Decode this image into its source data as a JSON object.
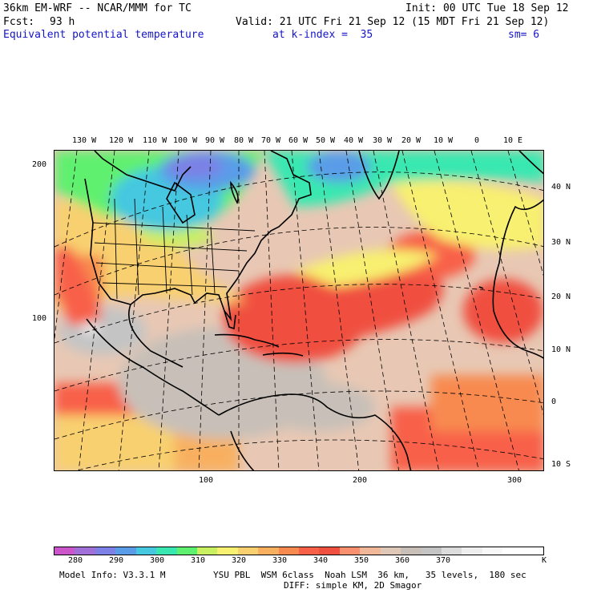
{
  "header": {
    "model": "36km EM-WRF -- NCAR/MMM for TC",
    "init": "Init: 00 UTC Tue 18 Sep 12",
    "fcst_label": "Fcst:",
    "fcst_value": "93 h",
    "valid": "Valid: 21 UTC Fri 21 Sep 12 (15 MDT Fri 21 Sep 12)",
    "field": "Equivalent potential temperature",
    "level": "at k-index =  35",
    "smoothing": "sm= 6"
  },
  "map": {
    "top_longitude_labels": [
      "130 W",
      "120 W",
      "110 W",
      "100 W",
      "90 W",
      "80 W",
      "70 W",
      "60 W",
      "50 W",
      "40 W",
      "30 W",
      "20 W",
      "10 W",
      "0",
      "10 E"
    ],
    "right_latitude_labels": [
      "40 N",
      "30 N",
      "20 N",
      "10 N",
      "0",
      "10 S"
    ],
    "left_grid_labels": [
      "200",
      "100"
    ],
    "bottom_grid_labels": [
      "100",
      "200",
      "300"
    ]
  },
  "colorbar": {
    "colors": [
      "#cc55cc",
      "#a070d8",
      "#7d80e6",
      "#5a9ce8",
      "#45c8e0",
      "#38e8b0",
      "#60f070",
      "#c8f060",
      "#f8f070",
      "#f8d070",
      "#f8b060",
      "#f88a50",
      "#f86048",
      "#f05040",
      "#f89070",
      "#f0b898",
      "#e0c8b8",
      "#c8c0b8",
      "#c4c4c4",
      "#dcdcdc",
      "#eeeeee",
      "#f8f8f8",
      "#ffffff",
      "#ffffff"
    ],
    "labels": [
      "280",
      "290",
      "300",
      "310",
      "320",
      "330",
      "340",
      "350",
      "360",
      "370"
    ],
    "unit": "K"
  },
  "footer": {
    "model_info": "Model Info: V3.3.1 M",
    "physics": "YSU PBL  WSM 6class  Noah LSM  36 km,   35 levels,  180 sec",
    "diffusion": "DIFF: simple KM, 2D Smagor"
  }
}
